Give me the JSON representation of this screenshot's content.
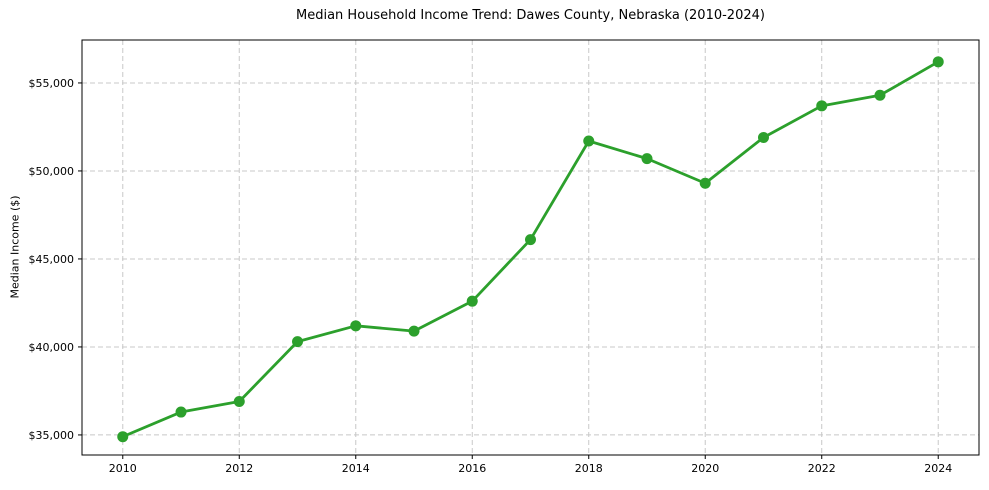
{
  "chart_data": {
    "type": "line",
    "title": "Median Household Income Trend: Dawes County, Nebraska (2010-2024)",
    "xlabel": "",
    "ylabel": "Median Income ($)",
    "x": [
      2010,
      2011,
      2012,
      2013,
      2014,
      2015,
      2016,
      2017,
      2018,
      2019,
      2020,
      2021,
      2022,
      2023,
      2024
    ],
    "series": [
      {
        "name": "Median Household Income",
        "values": [
          34900,
          36300,
          36900,
          40300,
          41200,
          40900,
          42600,
          46100,
          51700,
          50700,
          49300,
          51900,
          53700,
          54300,
          56200
        ],
        "color": "#2ca02c",
        "marker": "circle",
        "line_width": 2.8,
        "marker_radius": 5.5
      }
    ],
    "xticks": [
      2010,
      2012,
      2014,
      2016,
      2018,
      2020,
      2022,
      2024
    ],
    "xtick_labels": [
      "2010",
      "2012",
      "2014",
      "2016",
      "2018",
      "2020",
      "2022",
      "2024"
    ],
    "yticks": [
      35000,
      40000,
      45000,
      50000,
      55000
    ],
    "ytick_labels": [
      "$35,000",
      "$40,000",
      "$45,000",
      "$50,000",
      "$55,000"
    ],
    "xlim": [
      2009.3,
      2024.7
    ],
    "ylim": [
      33860,
      57440
    ],
    "grid": "dashed",
    "grid_color": "#c8c8c8",
    "spine_color": "#000000",
    "tick_color": "#000000",
    "background_color": "#ffffff",
    "legend": "none"
  }
}
